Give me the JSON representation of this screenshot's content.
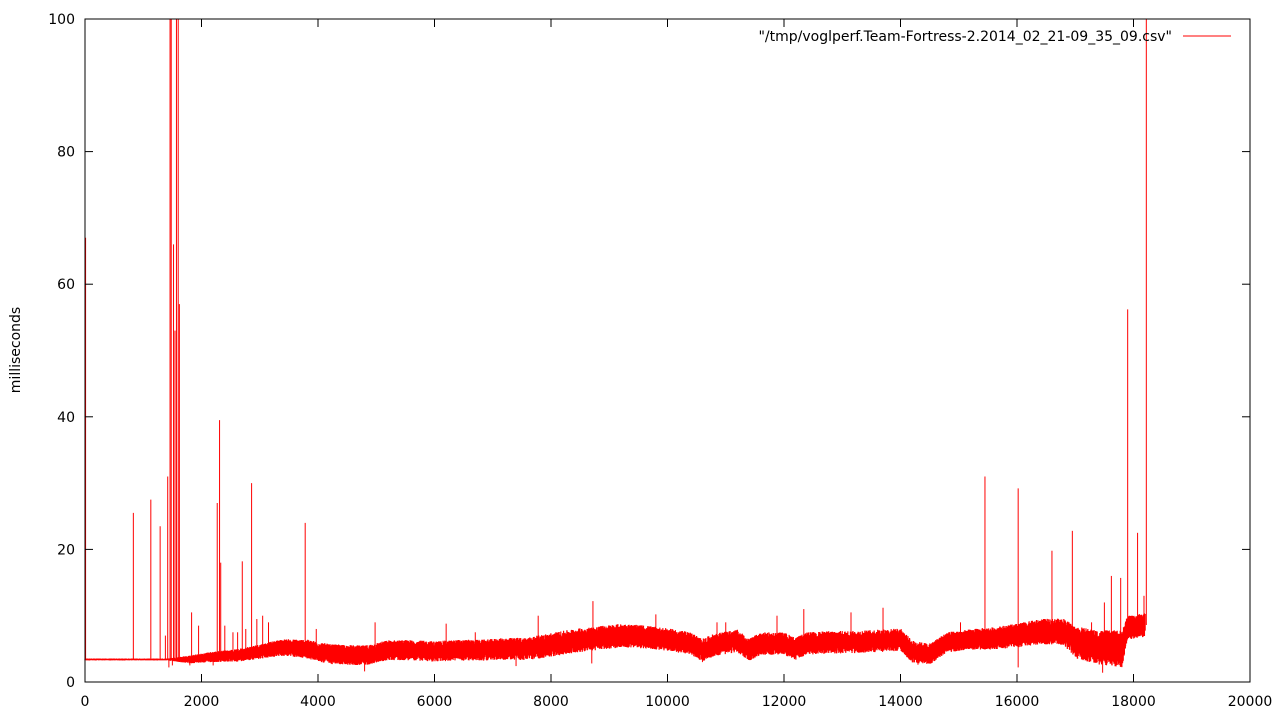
{
  "chart_data": {
    "type": "line",
    "title": "",
    "xlabel": "",
    "ylabel": "milliseconds",
    "xlim": [
      0,
      20000
    ],
    "ylim": [
      0,
      100
    ],
    "x_ticks": [
      0,
      2000,
      4000,
      6000,
      8000,
      10000,
      12000,
      14000,
      16000,
      18000,
      20000
    ],
    "y_ticks": [
      0,
      20,
      40,
      60,
      80,
      100
    ],
    "grid": false,
    "legend_position": "top-right",
    "series": [
      {
        "name": "\"/tmp/voglperf.Team-Fortress-2.2014_02_21-09_35_09.csv\"",
        "color": "#ff0000",
        "baseline": [
          [
            0,
            3.4
          ],
          [
            1400,
            3.4
          ],
          [
            1800,
            3.4
          ],
          [
            2200,
            3.8
          ],
          [
            2600,
            4.0
          ],
          [
            3000,
            4.6
          ],
          [
            3400,
            5.2
          ],
          [
            3800,
            5.0
          ],
          [
            4200,
            4.2
          ],
          [
            4800,
            4.0
          ],
          [
            5200,
            4.8
          ],
          [
            5600,
            4.8
          ],
          [
            6000,
            4.6
          ],
          [
            6400,
            4.8
          ],
          [
            6800,
            4.8
          ],
          [
            7200,
            5.0
          ],
          [
            7600,
            5.0
          ],
          [
            8000,
            5.6
          ],
          [
            8400,
            6.2
          ],
          [
            8800,
            6.6
          ],
          [
            9200,
            7.0
          ],
          [
            9600,
            6.8
          ],
          [
            10000,
            6.4
          ],
          [
            10400,
            5.8
          ],
          [
            10600,
            4.8
          ],
          [
            10800,
            5.6
          ],
          [
            11200,
            6.2
          ],
          [
            11400,
            4.8
          ],
          [
            11600,
            5.8
          ],
          [
            12000,
            5.8
          ],
          [
            12200,
            5.0
          ],
          [
            12400,
            5.8
          ],
          [
            12800,
            6.0
          ],
          [
            13200,
            6.0
          ],
          [
            13600,
            6.2
          ],
          [
            14000,
            6.4
          ],
          [
            14200,
            4.6
          ],
          [
            14500,
            4.2
          ],
          [
            14800,
            6.0
          ],
          [
            15200,
            6.4
          ],
          [
            15600,
            6.6
          ],
          [
            16000,
            7.0
          ],
          [
            16400,
            7.6
          ],
          [
            16800,
            7.6
          ],
          [
            17000,
            6.0
          ],
          [
            17400,
            5.2
          ],
          [
            17800,
            5.0
          ],
          [
            17900,
            8.2
          ],
          [
            18200,
            8.6
          ]
        ],
        "band_halfwidth": [
          [
            0,
            0.15
          ],
          [
            1400,
            0.15
          ],
          [
            1800,
            0.6
          ],
          [
            2200,
            0.8
          ],
          [
            3000,
            1.1
          ],
          [
            4000,
            1.5
          ],
          [
            5000,
            1.5
          ],
          [
            7000,
            1.6
          ],
          [
            8000,
            1.8
          ],
          [
            9000,
            1.8
          ],
          [
            10000,
            1.7
          ],
          [
            12000,
            1.7
          ],
          [
            14000,
            1.7
          ],
          [
            15000,
            1.5
          ],
          [
            16000,
            1.8
          ],
          [
            16800,
            2.0
          ],
          [
            17000,
            2.4
          ],
          [
            17800,
            2.8
          ],
          [
            17900,
            1.8
          ],
          [
            18200,
            1.8
          ]
        ],
        "spikes": [
          [
            10,
            67
          ],
          [
            830,
            25.5
          ],
          [
            1130,
            27.5
          ],
          [
            1290,
            23.5
          ],
          [
            1380,
            7
          ],
          [
            1420,
            31
          ],
          [
            1460,
            100
          ],
          [
            1480,
            100
          ],
          [
            1520,
            66
          ],
          [
            1545,
            53
          ],
          [
            1570,
            100
          ],
          [
            1600,
            100
          ],
          [
            1620,
            57
          ],
          [
            1830,
            10.5
          ],
          [
            1950,
            8.5
          ],
          [
            2270,
            27
          ],
          [
            2310,
            39.5
          ],
          [
            2330,
            18
          ],
          [
            2400,
            8.5
          ],
          [
            2540,
            7.5
          ],
          [
            2620,
            7.5
          ],
          [
            2700,
            18.2
          ],
          [
            2760,
            8
          ],
          [
            2860,
            30
          ],
          [
            2950,
            9.5
          ],
          [
            3050,
            10
          ],
          [
            3150,
            9
          ],
          [
            3780,
            24
          ],
          [
            3970,
            8
          ],
          [
            4980,
            9
          ],
          [
            6200,
            8.8
          ],
          [
            6700,
            7.5
          ],
          [
            7780,
            10
          ],
          [
            8720,
            12.2
          ],
          [
            9800,
            10.2
          ],
          [
            10850,
            9
          ],
          [
            11000,
            9
          ],
          [
            11880,
            10
          ],
          [
            12340,
            11
          ],
          [
            13150,
            10.5
          ],
          [
            13700,
            11.2
          ],
          [
            15030,
            9
          ],
          [
            15450,
            31
          ],
          [
            16020,
            29.2
          ],
          [
            16600,
            19.8
          ],
          [
            16950,
            22.8
          ],
          [
            17280,
            9
          ],
          [
            17500,
            12
          ],
          [
            17620,
            16
          ],
          [
            17780,
            15.7
          ],
          [
            17900,
            56.2
          ],
          [
            18070,
            22.5
          ],
          [
            18180,
            13
          ],
          [
            18220,
            100
          ]
        ],
        "dips": [
          [
            1440,
            2.2
          ],
          [
            1500,
            2.5
          ],
          [
            1800,
            2.5
          ],
          [
            2200,
            2.5
          ],
          [
            4800,
            1.6
          ],
          [
            7400,
            2.4
          ],
          [
            8700,
            2.8
          ],
          [
            10600,
            3
          ],
          [
            14300,
            2.6
          ],
          [
            16020,
            2.2
          ],
          [
            17470,
            1.4
          ]
        ]
      }
    ]
  }
}
